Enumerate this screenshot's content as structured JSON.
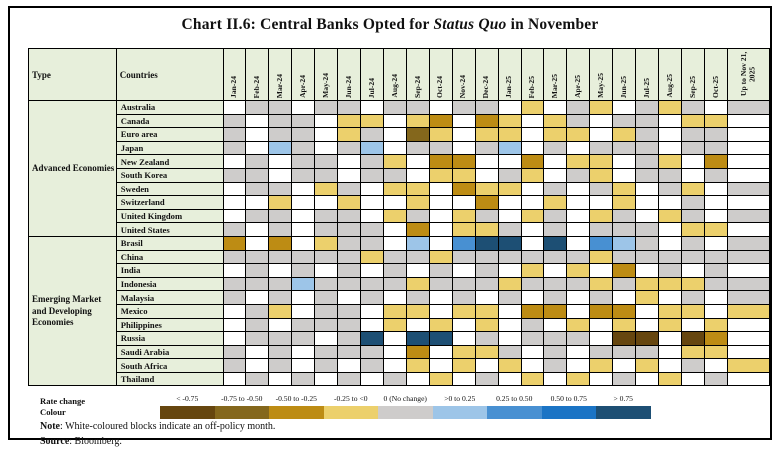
{
  "title": {
    "prefix": "Chart II.6: Central Banks Opted for ",
    "emphasis": "Status Quo",
    "suffix": " in November"
  },
  "header": {
    "type": "Type",
    "countries": "Countries"
  },
  "legend": {
    "caption_line1": "Rate change",
    "caption_line2": "Colour",
    "items": [
      {
        "label": "< -0.75",
        "code": "D"
      },
      {
        "label": "-0.75 to -0.50",
        "code": "O"
      },
      {
        "label": "-0.50 to -0.25",
        "code": "T"
      },
      {
        "label": "-0.25 to <0",
        "code": "Y"
      },
      {
        "label": "0 (No change)",
        "code": "G"
      },
      {
        "label": ">0 to 0.25",
        "code": "B1"
      },
      {
        "label": "0.25 to 0.50",
        "code": "B2"
      },
      {
        "label": "0.50 to 0.75",
        "code": "B3"
      },
      {
        "label": "> 0.75",
        "code": "B4"
      }
    ]
  },
  "note": {
    "label": "Note",
    "text": ": White-coloured blocks indicate an off-policy month."
  },
  "source": {
    "label": "Source",
    "text": ": Bloomberg."
  },
  "colors": {
    "W": "#ffffff",
    "G": "#cecccb",
    "Y": "#ecd06c",
    "T": "#bd8c14",
    "O": "#84671c",
    "D": "#66460f",
    "B1": "#9dc5e8",
    "B2": "#4890d2",
    "B3": "#1b74c5",
    "B4": "#1d4f74",
    "header_bg": "#e7efdb",
    "border": "#000000"
  },
  "chart_data": {
    "type": "heatmap",
    "title": "Chart II.6: Central Banks Opted for Status Quo in November",
    "legend_position": "bottom",
    "x_categories": [
      "Jan-24",
      "Feb-24",
      "Mar-24",
      "Apr-24",
      "May-24",
      "Jun-24",
      "Jul-24",
      "Aug-24",
      "Sep-24",
      "Oct-24",
      "Nov-24",
      "Dec-24",
      "Jan-25",
      "Feb-25",
      "Mar-25",
      "Apr-25",
      "May-25",
      "Jun-25",
      "Jul-25",
      "Aug-25",
      "Sep-25",
      "Oct-25",
      "Up to Nov 21, 2025"
    ],
    "cell_codes": {
      "W": "off-policy month",
      "G": "0 (No change)",
      "Y": "-0.25 to <0",
      "T": "-0.50 to -0.25",
      "O": "-0.75 to -0.50",
      "D": "< -0.75",
      "B1": ">0 to 0.25",
      "B2": "0.25 to 0.50",
      "B3": "0.50 to 0.75",
      "B4": "> 0.75"
    },
    "row_groups": [
      {
        "group": "Advanced Economies",
        "rows": [
          {
            "country": "Australia",
            "cells": [
              "W",
              "G",
              "G",
              "W",
              "G",
              "G",
              "W",
              "G",
              "G",
              "W",
              "G",
              "G",
              "W",
              "Y",
              "W",
              "G",
              "Y",
              "W",
              "G",
              "Y",
              "G",
              "W",
              "G"
            ]
          },
          {
            "country": "Canada",
            "cells": [
              "G",
              "W",
              "G",
              "G",
              "W",
              "Y",
              "Y",
              "W",
              "Y",
              "T",
              "W",
              "T",
              "Y",
              "W",
              "Y",
              "G",
              "W",
              "G",
              "G",
              "W",
              "Y",
              "Y",
              "W"
            ]
          },
          {
            "country": "Euro area",
            "cells": [
              "G",
              "W",
              "G",
              "G",
              "W",
              "Y",
              "G",
              "W",
              "O",
              "Y",
              "W",
              "Y",
              "Y",
              "W",
              "Y",
              "Y",
              "W",
              "Y",
              "G",
              "W",
              "G",
              "G",
              "W"
            ]
          },
          {
            "country": "Japan",
            "cells": [
              "G",
              "W",
              "B1",
              "G",
              "W",
              "G",
              "B1",
              "W",
              "G",
              "G",
              "W",
              "G",
              "B1",
              "W",
              "G",
              "W",
              "G",
              "G",
              "G",
              "W",
              "G",
              "G",
              "W"
            ]
          },
          {
            "country": "New Zealand",
            "cells": [
              "W",
              "G",
              "W",
              "G",
              "G",
              "W",
              "G",
              "Y",
              "W",
              "T",
              "T",
              "W",
              "W",
              "T",
              "W",
              "Y",
              "Y",
              "W",
              "G",
              "Y",
              "W",
              "T",
              "W"
            ]
          },
          {
            "country": "South Korea",
            "cells": [
              "G",
              "G",
              "W",
              "G",
              "G",
              "W",
              "G",
              "G",
              "W",
              "Y",
              "Y",
              "W",
              "G",
              "Y",
              "W",
              "G",
              "Y",
              "W",
              "G",
              "G",
              "W",
              "G",
              "W"
            ]
          },
          {
            "country": "Sweden",
            "cells": [
              "W",
              "G",
              "G",
              "W",
              "Y",
              "G",
              "W",
              "Y",
              "Y",
              "W",
              "T",
              "Y",
              "Y",
              "W",
              "G",
              "W",
              "G",
              "Y",
              "W",
              "G",
              "Y",
              "W",
              "G"
            ]
          },
          {
            "country": "Switzerland",
            "cells": [
              "W",
              "W",
              "Y",
              "W",
              "W",
              "Y",
              "W",
              "W",
              "Y",
              "W",
              "W",
              "T",
              "W",
              "W",
              "Y",
              "W",
              "W",
              "Y",
              "W",
              "W",
              "G",
              "W",
              "W"
            ]
          },
          {
            "country": "United Kingdom",
            "cells": [
              "W",
              "G",
              "G",
              "W",
              "G",
              "G",
              "W",
              "Y",
              "G",
              "W",
              "Y",
              "G",
              "W",
              "Y",
              "G",
              "W",
              "Y",
              "G",
              "W",
              "Y",
              "G",
              "W",
              "G"
            ]
          },
          {
            "country": "United States",
            "cells": [
              "G",
              "W",
              "G",
              "W",
              "G",
              "G",
              "G",
              "W",
              "T",
              "W",
              "Y",
              "Y",
              "G",
              "W",
              "G",
              "W",
              "G",
              "G",
              "G",
              "W",
              "Y",
              "Y",
              "W"
            ]
          }
        ]
      },
      {
        "group": "Emerging Market and Developing Economies",
        "rows": [
          {
            "country": "Brasil",
            "cells": [
              "T",
              "W",
              "T",
              "W",
              "Y",
              "G",
              "G",
              "W",
              "B1",
              "W",
              "B2",
              "B4",
              "B4",
              "W",
              "B4",
              "W",
              "B2",
              "B1",
              "G",
              "W",
              "G",
              "W",
              "G"
            ]
          },
          {
            "country": "China",
            "cells": [
              "G",
              "G",
              "G",
              "G",
              "G",
              "G",
              "Y",
              "G",
              "G",
              "Y",
              "G",
              "G",
              "G",
              "G",
              "G",
              "G",
              "Y",
              "G",
              "G",
              "G",
              "G",
              "G",
              "G"
            ]
          },
          {
            "country": "India",
            "cells": [
              "W",
              "G",
              "W",
              "G",
              "W",
              "G",
              "W",
              "G",
              "W",
              "G",
              "W",
              "G",
              "W",
              "Y",
              "W",
              "Y",
              "W",
              "T",
              "W",
              "G",
              "W",
              "G",
              "W"
            ]
          },
          {
            "country": "Indonesia",
            "cells": [
              "G",
              "G",
              "G",
              "B1",
              "G",
              "G",
              "G",
              "G",
              "Y",
              "G",
              "G",
              "G",
              "Y",
              "G",
              "G",
              "G",
              "Y",
              "G",
              "Y",
              "Y",
              "Y",
              "G",
              "G"
            ]
          },
          {
            "country": "Malaysia",
            "cells": [
              "G",
              "W",
              "G",
              "W",
              "G",
              "W",
              "G",
              "W",
              "G",
              "W",
              "G",
              "W",
              "G",
              "W",
              "G",
              "W",
              "G",
              "W",
              "Y",
              "W",
              "G",
              "W",
              "G"
            ]
          },
          {
            "country": "Mexico",
            "cells": [
              "W",
              "G",
              "Y",
              "W",
              "G",
              "G",
              "W",
              "Y",
              "Y",
              "W",
              "Y",
              "Y",
              "W",
              "T",
              "T",
              "W",
              "T",
              "T",
              "W",
              "Y",
              "Y",
              "W",
              "Y"
            ]
          },
          {
            "country": "Philippines",
            "cells": [
              "W",
              "G",
              "W",
              "G",
              "G",
              "G",
              "W",
              "Y",
              "W",
              "Y",
              "W",
              "Y",
              "W",
              "G",
              "W",
              "Y",
              "W",
              "Y",
              "W",
              "Y",
              "W",
              "Y",
              "W"
            ]
          },
          {
            "country": "Russia",
            "cells": [
              "W",
              "G",
              "G",
              "G",
              "W",
              "G",
              "B4",
              "W",
              "B4",
              "B4",
              "W",
              "G",
              "W",
              "G",
              "G",
              "G",
              "W",
              "D",
              "D",
              "W",
              "D",
              "T",
              "W"
            ]
          },
          {
            "country": "Saudi Arabia",
            "cells": [
              "G",
              "W",
              "G",
              "W",
              "G",
              "G",
              "G",
              "W",
              "T",
              "W",
              "Y",
              "Y",
              "G",
              "W",
              "G",
              "W",
              "G",
              "G",
              "G",
              "W",
              "Y",
              "Y",
              "W"
            ]
          },
          {
            "country": "South Africa",
            "cells": [
              "G",
              "W",
              "G",
              "W",
              "G",
              "W",
              "G",
              "W",
              "Y",
              "W",
              "Y",
              "W",
              "Y",
              "W",
              "G",
              "W",
              "Y",
              "W",
              "Y",
              "W",
              "G",
              "W",
              "Y"
            ]
          },
          {
            "country": "Thailand",
            "cells": [
              "W",
              "G",
              "W",
              "G",
              "W",
              "G",
              "W",
              "G",
              "W",
              "Y",
              "W",
              "G",
              "W",
              "Y",
              "W",
              "Y",
              "W",
              "G",
              "W",
              "Y",
              "W",
              "G",
              "W"
            ]
          }
        ]
      }
    ]
  }
}
